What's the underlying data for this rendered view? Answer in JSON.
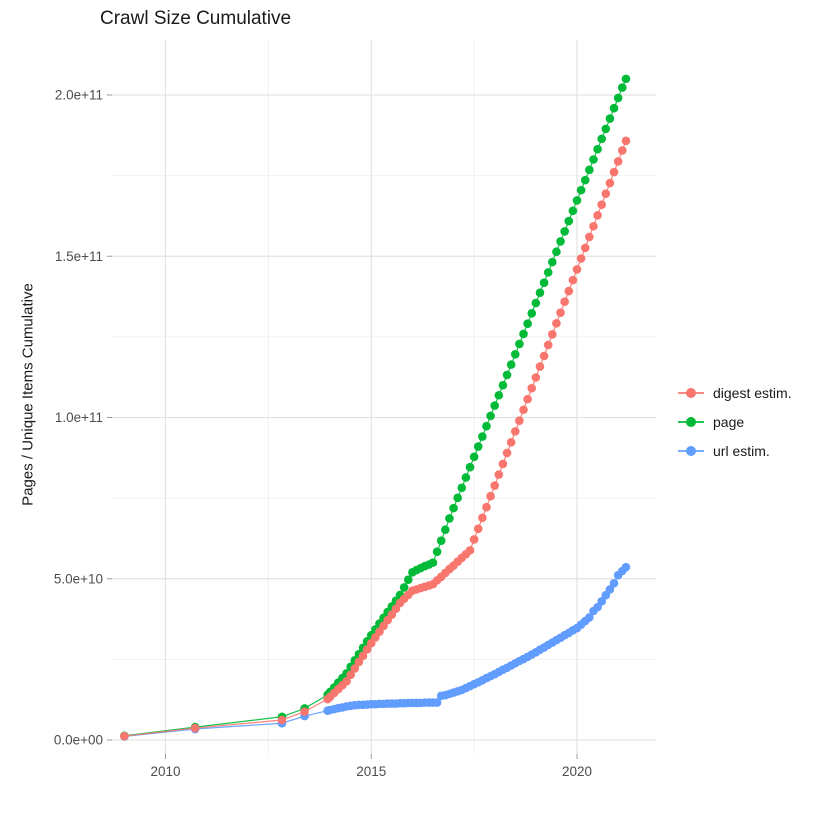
{
  "title": "Crawl Size Cumulative",
  "legend": {
    "items": [
      {
        "label": "digest estim.",
        "color": "#F8766D"
      },
      {
        "label": "page",
        "color": "#00BA38"
      },
      {
        "label": "url estim.",
        "color": "#619CFF"
      }
    ]
  },
  "colors": {
    "grid_major": "#E3E3E3",
    "grid_minor": "#F0F0F0",
    "tick_mark": "#9a9a9a",
    "tick_label": "#4d4d4d"
  },
  "chart_data": {
    "type": "line",
    "title": "Crawl Size Cumulative",
    "xlabel": "",
    "ylabel": "Pages / Unique Items Cumulative",
    "legend_position": "right",
    "grid": "on",
    "x_ticks": [
      {
        "label": "2010",
        "value": 2010
      },
      {
        "label": "2015",
        "value": 2015
      },
      {
        "label": "2020",
        "value": 2020
      }
    ],
    "x_minor_ticks": [
      2012.5,
      2017.5
    ],
    "y_ticks": [
      {
        "label": "0.0e+00",
        "value": 0
      },
      {
        "label": "5.0e+10",
        "value": 50
      },
      {
        "label": "1.0e+11",
        "value": 100
      },
      {
        "label": "1.5e+11",
        "value": 150
      },
      {
        "label": "2.0e+11",
        "value": 200
      }
    ],
    "y_minor_ticks": [
      25,
      75,
      125,
      175
    ],
    "x_range": [
      2008.7,
      2021.9
    ],
    "y_range_billions": [
      0,
      217
    ],
    "value_unit": "1e9 items (values below are billions)",
    "series": [
      {
        "name": "digest estim.",
        "color": "#F8766D",
        "points": [
          [
            2009.0,
            1.2
          ],
          [
            2010.72,
            3.7
          ],
          [
            2012.83,
            6.2
          ],
          [
            2013.38,
            8.8
          ],
          [
            2013.94,
            12.7
          ],
          [
            2014.0,
            13.4
          ],
          [
            2014.1,
            14.6
          ],
          [
            2014.2,
            15.8
          ],
          [
            2014.3,
            17.0
          ],
          [
            2014.4,
            18.2
          ],
          [
            2014.5,
            20.2
          ],
          [
            2014.6,
            22.2
          ],
          [
            2014.7,
            24.2
          ],
          [
            2014.8,
            26.1
          ],
          [
            2014.9,
            28.1
          ],
          [
            2015.0,
            30.0
          ],
          [
            2015.1,
            31.8
          ],
          [
            2015.2,
            33.6
          ],
          [
            2015.3,
            35.4
          ],
          [
            2015.4,
            37.2
          ],
          [
            2015.5,
            38.9
          ],
          [
            2015.6,
            40.7
          ],
          [
            2015.7,
            42.5
          ],
          [
            2015.8,
            43.8
          ],
          [
            2015.9,
            45.0
          ],
          [
            2016.0,
            46.3
          ],
          [
            2016.1,
            46.7
          ],
          [
            2016.2,
            47.1
          ],
          [
            2016.3,
            47.5
          ],
          [
            2016.4,
            47.9
          ],
          [
            2016.5,
            48.3
          ],
          [
            2016.6,
            49.5
          ],
          [
            2016.7,
            50.6
          ],
          [
            2016.8,
            51.8
          ],
          [
            2016.9,
            53.0
          ],
          [
            2017.0,
            54.1
          ],
          [
            2017.1,
            55.3
          ],
          [
            2017.2,
            56.5
          ],
          [
            2017.3,
            57.6
          ],
          [
            2017.4,
            58.8
          ],
          [
            2017.5,
            62.2
          ],
          [
            2017.6,
            65.5
          ],
          [
            2017.7,
            68.9
          ],
          [
            2017.8,
            72.2
          ],
          [
            2017.9,
            75.6
          ],
          [
            2018.0,
            78.9
          ],
          [
            2018.1,
            82.3
          ],
          [
            2018.2,
            85.6
          ],
          [
            2018.3,
            89.0
          ],
          [
            2018.4,
            92.3
          ],
          [
            2018.5,
            95.7
          ],
          [
            2018.6,
            99.0
          ],
          [
            2018.7,
            102.4
          ],
          [
            2018.8,
            105.7
          ],
          [
            2018.9,
            109.1
          ],
          [
            2019.0,
            112.4
          ],
          [
            2019.1,
            115.8
          ],
          [
            2019.2,
            119.1
          ],
          [
            2019.3,
            122.5
          ],
          [
            2019.4,
            125.8
          ],
          [
            2019.5,
            129.2
          ],
          [
            2019.6,
            132.5
          ],
          [
            2019.7,
            135.9
          ],
          [
            2019.8,
            139.2
          ],
          [
            2019.9,
            142.6
          ],
          [
            2020.0,
            145.9
          ],
          [
            2020.1,
            149.3
          ],
          [
            2020.2,
            152.6
          ],
          [
            2020.3,
            156.0
          ],
          [
            2020.4,
            159.3
          ],
          [
            2020.5,
            162.7
          ],
          [
            2020.6,
            166.0
          ],
          [
            2020.7,
            169.4
          ],
          [
            2020.8,
            172.7
          ],
          [
            2020.9,
            176.1
          ],
          [
            2021.0,
            179.4
          ],
          [
            2021.1,
            182.8
          ],
          [
            2021.19,
            185.8
          ]
        ]
      },
      {
        "name": "page",
        "color": "#00BA38",
        "points": [
          [
            2009.0,
            1.3
          ],
          [
            2010.72,
            4.0
          ],
          [
            2012.83,
            7.2
          ],
          [
            2013.38,
            9.8
          ],
          [
            2013.94,
            14.0
          ],
          [
            2014.0,
            14.9
          ],
          [
            2014.1,
            16.3
          ],
          [
            2014.2,
            17.8
          ],
          [
            2014.3,
            19.2
          ],
          [
            2014.4,
            20.7
          ],
          [
            2014.5,
            22.7
          ],
          [
            2014.6,
            24.7
          ],
          [
            2014.7,
            26.6
          ],
          [
            2014.8,
            28.6
          ],
          [
            2014.9,
            30.6
          ],
          [
            2015.0,
            32.5
          ],
          [
            2015.1,
            34.3
          ],
          [
            2015.2,
            36.1
          ],
          [
            2015.3,
            37.9
          ],
          [
            2015.4,
            39.7
          ],
          [
            2015.5,
            41.4
          ],
          [
            2015.6,
            43.2
          ],
          [
            2015.7,
            45.0
          ],
          [
            2015.8,
            47.3
          ],
          [
            2015.9,
            49.7
          ],
          [
            2016.0,
            52.0
          ],
          [
            2016.1,
            52.7
          ],
          [
            2016.2,
            53.3
          ],
          [
            2016.3,
            53.9
          ],
          [
            2016.4,
            54.4
          ],
          [
            2016.5,
            55.0
          ],
          [
            2016.6,
            58.4
          ],
          [
            2016.7,
            61.8
          ],
          [
            2016.8,
            65.2
          ],
          [
            2016.9,
            68.7
          ],
          [
            2017.0,
            71.9
          ],
          [
            2017.1,
            75.1
          ],
          [
            2017.2,
            78.2
          ],
          [
            2017.3,
            81.4
          ],
          [
            2017.4,
            84.6
          ],
          [
            2017.5,
            87.8
          ],
          [
            2017.6,
            91.0
          ],
          [
            2017.7,
            94.1
          ],
          [
            2017.8,
            97.3
          ],
          [
            2017.9,
            100.5
          ],
          [
            2018.0,
            103.7
          ],
          [
            2018.1,
            106.9
          ],
          [
            2018.2,
            110.0
          ],
          [
            2018.3,
            113.2
          ],
          [
            2018.4,
            116.4
          ],
          [
            2018.5,
            119.6
          ],
          [
            2018.6,
            122.8
          ],
          [
            2018.7,
            125.9
          ],
          [
            2018.8,
            129.1
          ],
          [
            2018.9,
            132.3
          ],
          [
            2019.0,
            135.5
          ],
          [
            2019.1,
            138.7
          ],
          [
            2019.2,
            141.8
          ],
          [
            2019.3,
            145.0
          ],
          [
            2019.4,
            148.2
          ],
          [
            2019.5,
            151.4
          ],
          [
            2019.6,
            154.6
          ],
          [
            2019.7,
            157.7
          ],
          [
            2019.8,
            160.9
          ],
          [
            2019.9,
            164.1
          ],
          [
            2020.0,
            167.3
          ],
          [
            2020.1,
            170.5
          ],
          [
            2020.2,
            173.6
          ],
          [
            2020.3,
            176.8
          ],
          [
            2020.4,
            180.0
          ],
          [
            2020.5,
            183.2
          ],
          [
            2020.6,
            186.4
          ],
          [
            2020.7,
            189.5
          ],
          [
            2020.8,
            192.7
          ],
          [
            2020.9,
            195.9
          ],
          [
            2021.0,
            199.1
          ],
          [
            2021.1,
            202.3
          ],
          [
            2021.19,
            205.0
          ]
        ]
      },
      {
        "name": "url estim.",
        "color": "#619CFF",
        "points": [
          [
            2009.0,
            1.1
          ],
          [
            2010.72,
            3.4
          ],
          [
            2012.83,
            5.2
          ],
          [
            2013.38,
            7.4
          ],
          [
            2013.94,
            9.1
          ],
          [
            2014.0,
            9.3
          ],
          [
            2014.1,
            9.6
          ],
          [
            2014.2,
            9.9
          ],
          [
            2014.3,
            10.1
          ],
          [
            2014.4,
            10.4
          ],
          [
            2014.5,
            10.6
          ],
          [
            2014.6,
            10.8
          ],
          [
            2014.7,
            10.9
          ],
          [
            2014.8,
            10.9
          ],
          [
            2014.9,
            11.0
          ],
          [
            2015.0,
            11.1
          ],
          [
            2015.1,
            11.1
          ],
          [
            2015.2,
            11.2
          ],
          [
            2015.3,
            11.2
          ],
          [
            2015.4,
            11.3
          ],
          [
            2015.5,
            11.3
          ],
          [
            2015.6,
            11.3
          ],
          [
            2015.7,
            11.4
          ],
          [
            2015.8,
            11.4
          ],
          [
            2015.9,
            11.5
          ],
          [
            2016.0,
            11.5
          ],
          [
            2016.1,
            11.5
          ],
          [
            2016.2,
            11.5
          ],
          [
            2016.3,
            11.6
          ],
          [
            2016.4,
            11.6
          ],
          [
            2016.5,
            11.6
          ],
          [
            2016.6,
            11.6
          ],
          [
            2016.7,
            13.7
          ],
          [
            2016.8,
            13.9
          ],
          [
            2016.9,
            14.3
          ],
          [
            2017.0,
            14.7
          ],
          [
            2017.1,
            15.1
          ],
          [
            2017.2,
            15.5
          ],
          [
            2017.3,
            16.1
          ],
          [
            2017.4,
            16.7
          ],
          [
            2017.5,
            17.3
          ],
          [
            2017.6,
            17.9
          ],
          [
            2017.7,
            18.5
          ],
          [
            2017.8,
            19.2
          ],
          [
            2017.9,
            19.8
          ],
          [
            2018.0,
            20.4
          ],
          [
            2018.1,
            21.1
          ],
          [
            2018.2,
            21.8
          ],
          [
            2018.3,
            22.4
          ],
          [
            2018.4,
            23.1
          ],
          [
            2018.5,
            23.8
          ],
          [
            2018.6,
            24.5
          ],
          [
            2018.7,
            25.1
          ],
          [
            2018.8,
            25.8
          ],
          [
            2018.9,
            26.5
          ],
          [
            2019.0,
            27.2
          ],
          [
            2019.1,
            28.0
          ],
          [
            2019.2,
            28.7
          ],
          [
            2019.3,
            29.5
          ],
          [
            2019.4,
            30.2
          ],
          [
            2019.5,
            31.0
          ],
          [
            2019.6,
            31.7
          ],
          [
            2019.7,
            32.5
          ],
          [
            2019.8,
            33.2
          ],
          [
            2019.9,
            34.0
          ],
          [
            2020.0,
            34.7
          ],
          [
            2020.1,
            35.8
          ],
          [
            2020.2,
            36.9
          ],
          [
            2020.3,
            38.0
          ],
          [
            2020.4,
            40.0
          ],
          [
            2020.5,
            41.2
          ],
          [
            2020.6,
            43.0
          ],
          [
            2020.7,
            44.9
          ],
          [
            2020.8,
            46.7
          ],
          [
            2020.9,
            48.6
          ],
          [
            2021.0,
            51.1
          ],
          [
            2021.1,
            52.4
          ],
          [
            2021.19,
            53.6
          ]
        ]
      }
    ]
  }
}
